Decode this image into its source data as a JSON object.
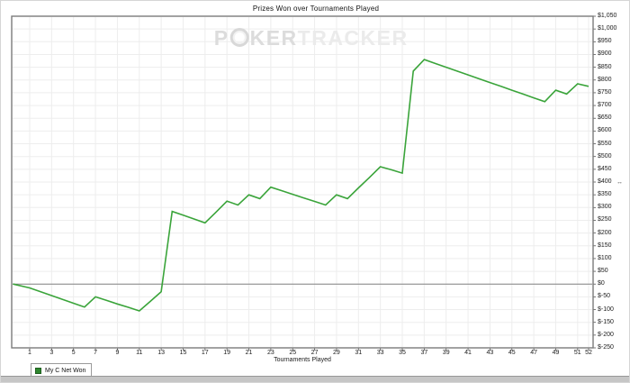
{
  "window": {
    "title": "Prizes Won over Tournaments Played"
  },
  "watermark": {
    "part1": "P",
    "chip_icon": "poker-chip-icon",
    "part2": "KER",
    "part3": "TRACKER"
  },
  "legend": {
    "label": "My C Net Won",
    "swatch_color": "#2d862d"
  },
  "axis_marker": {
    "at_value": 400,
    "icon": "double-arrow-icon",
    "glyph": "↔"
  },
  "chart_data": {
    "type": "line",
    "title": "Prizes Won over Tournaments Played",
    "xlabel": "Tournaments Played",
    "ylabel": "",
    "ylim": [
      -250,
      1050
    ],
    "y_tick_step": 50,
    "grid": true,
    "zero_line": true,
    "legend_position": "bottom-left",
    "line_color": "#3aa43a",
    "grid_color": "#ededed",
    "zero_line_color": "#828282",
    "frame_color": "#7a7a7a",
    "x_ticks": [
      1,
      3,
      5,
      7,
      9,
      11,
      13,
      15,
      17,
      19,
      21,
      23,
      25,
      27,
      29,
      31,
      33,
      35,
      37,
      39,
      41,
      43,
      45,
      47,
      49,
      51,
      52
    ],
    "y_tick_values": [
      1050,
      1000,
      950,
      900,
      850,
      800,
      750,
      700,
      650,
      600,
      550,
      500,
      450,
      400,
      350,
      300,
      250,
      200,
      150,
      100,
      50,
      0,
      -50,
      -100,
      -150,
      -200,
      -250
    ],
    "y_tick_labels": [
      "$1,050",
      "$1,000",
      "$950",
      "$900",
      "$850",
      "$800",
      "$750",
      "$700",
      "$650",
      "$600",
      "$550",
      "$500",
      "$450",
      "$400",
      "$350",
      "$300",
      "$250",
      "$200",
      "$150",
      "$100",
      "$50",
      "$0",
      "$-50",
      "$-100",
      "$-150",
      "$-200",
      "$-250"
    ],
    "series": [
      {
        "name": "My C Net Won",
        "color": "#3aa43a",
        "x_start": 0,
        "x_end": 52,
        "values": [
          0,
          -15,
          -30,
          -45,
          -60,
          -75,
          -90,
          -50,
          -64,
          -78,
          -91,
          -105,
          -68,
          -30,
          285,
          270,
          255,
          240,
          282,
          325,
          310,
          350,
          335,
          380,
          366,
          352,
          338,
          324,
          310,
          350,
          335,
          377,
          418,
          460,
          448,
          435,
          835,
          880,
          865,
          850,
          835,
          820,
          805,
          790,
          775,
          760,
          745,
          730,
          715,
          760,
          745,
          785,
          775
        ]
      }
    ]
  }
}
